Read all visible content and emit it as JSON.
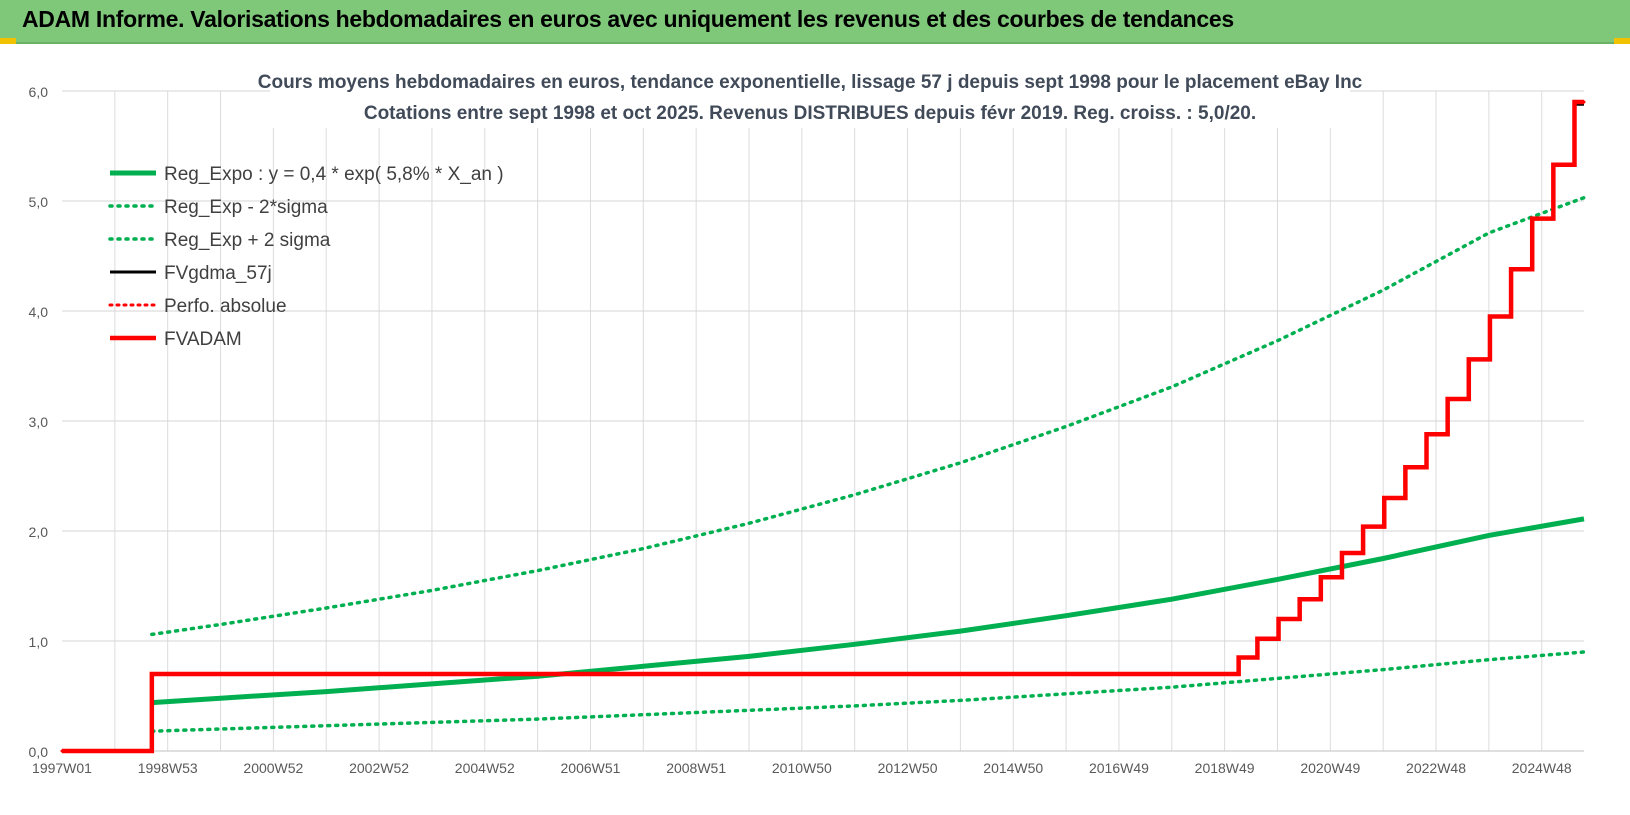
{
  "header": {
    "title": "ADAM Informe. Valorisations hebdomadaires en euros avec uniquement les revenus et des courbes de tendances"
  },
  "chart_data": {
    "type": "line",
    "title": "Cours moyens hebdomadaires en euros, tendance exponentielle, lissage 57 j depuis sept 1998 pour le placement eBay Inc",
    "subtitle": "Cotations entre sept 1998 et oct 2025. Revenus DISTRIBUES depuis févr 2019. Reg. croiss. : 5,0/20.",
    "xlabel": "",
    "ylabel": "",
    "x_range": [
      1997.0,
      2025.8
    ],
    "ylim": [
      0,
      6
    ],
    "y_ticks": [
      "0,0",
      "1,0",
      "2,0",
      "3,0",
      "4,0",
      "5,0",
      "6,0"
    ],
    "y_tick_values": [
      0,
      1,
      2,
      3,
      4,
      5,
      6
    ],
    "x_ticks": [
      "1997W01",
      "1998W53",
      "2000W52",
      "2002W52",
      "2004W52",
      "2006W51",
      "2008W51",
      "2010W50",
      "2012W50",
      "2014W50",
      "2016W49",
      "2018W49",
      "2020W49",
      "2022W48",
      "2024W48"
    ],
    "x_tick_values": [
      1997.0,
      1999.0,
      2001.0,
      2003.0,
      2005.0,
      2007.0,
      2009.0,
      2011.0,
      2013.0,
      2015.0,
      2017.0,
      2019.0,
      2021.0,
      2023.0,
      2025.0
    ],
    "grid": true,
    "legend_position": "top-left",
    "legend": [
      {
        "label": "Reg_Expo : y = 0,4 * exp( 5,8% *  X_an )",
        "color": "#00b050",
        "style": "solid-thick"
      },
      {
        "label": "Reg_Exp - 2*sigma",
        "color": "#00b050",
        "style": "dotted"
      },
      {
        "label": "Reg_Exp + 2 sigma",
        "color": "#00b050",
        "style": "dotted"
      },
      {
        "label": "FVgdma_57j",
        "color": "#000000",
        "style": "solid"
      },
      {
        "label": "Perfo. absolue",
        "color": "#ff0000",
        "style": "dotted"
      },
      {
        "label": "FVADAM",
        "color": "#ff0000",
        "style": "solid-thick"
      }
    ],
    "series": [
      {
        "name": "Reg_Expo : y = 0,4 * exp( 5,8% *  X_an )",
        "x": [
          1998.7,
          2000.0,
          2002.0,
          2004.0,
          2006.0,
          2008.0,
          2010.0,
          2012.0,
          2014.0,
          2016.0,
          2018.0,
          2020.0,
          2022.0,
          2024.0,
          2025.8
        ],
        "y": [
          0.44,
          0.48,
          0.54,
          0.61,
          0.68,
          0.77,
          0.86,
          0.97,
          1.09,
          1.23,
          1.38,
          1.56,
          1.75,
          1.96,
          2.11
        ]
      },
      {
        "name": "Reg_Exp - 2*sigma",
        "x": [
          1998.7,
          2000.0,
          2002.0,
          2004.0,
          2006.0,
          2008.0,
          2010.0,
          2012.0,
          2014.0,
          2016.0,
          2018.0,
          2020.0,
          2022.0,
          2024.0,
          2025.8
        ],
        "y": [
          0.18,
          0.2,
          0.23,
          0.26,
          0.29,
          0.33,
          0.37,
          0.41,
          0.46,
          0.52,
          0.58,
          0.66,
          0.74,
          0.83,
          0.9
        ]
      },
      {
        "name": "Reg_Exp + 2 sigma",
        "x": [
          1998.7,
          2000.0,
          2002.0,
          2004.0,
          2006.0,
          2008.0,
          2010.0,
          2012.0,
          2014.0,
          2016.0,
          2018.0,
          2020.0,
          2022.0,
          2024.0,
          2025.8
        ],
        "y": [
          1.06,
          1.15,
          1.3,
          1.46,
          1.64,
          1.84,
          2.07,
          2.33,
          2.62,
          2.95,
          3.31,
          3.73,
          4.19,
          4.71,
          5.03
        ]
      },
      {
        "name": "FVgdma_57j",
        "x": [
          1997.0,
          1998.7,
          1998.7,
          2019.1,
          2019.4,
          2019.8,
          2020.2,
          2020.6,
          2021.0,
          2021.4,
          2021.8,
          2022.2,
          2022.6,
          2023.0,
          2023.4,
          2023.8,
          2024.2,
          2024.6,
          2025.0,
          2025.4,
          2025.8
        ],
        "y": [
          0.0,
          0.0,
          0.7,
          0.7,
          0.85,
          1.02,
          1.2,
          1.38,
          1.58,
          1.8,
          2.04,
          2.3,
          2.58,
          2.88,
          3.2,
          3.56,
          3.95,
          4.38,
          4.84,
          5.33,
          5.88
        ]
      },
      {
        "name": "Perfo. absolue",
        "x": [
          1997.0,
          1998.7,
          1998.7,
          2019.1,
          2019.4,
          2019.8,
          2020.2,
          2020.6,
          2021.0,
          2021.4,
          2021.8,
          2022.2,
          2022.6,
          2023.0,
          2023.4,
          2023.8,
          2024.2,
          2024.6,
          2025.0,
          2025.4,
          2025.8
        ],
        "y": [
          0.0,
          0.0,
          0.7,
          0.7,
          0.85,
          1.02,
          1.2,
          1.38,
          1.58,
          1.8,
          2.04,
          2.3,
          2.58,
          2.88,
          3.2,
          3.56,
          3.95,
          4.38,
          4.84,
          5.33,
          5.9
        ]
      },
      {
        "name": "FVADAM",
        "x": [
          1997.0,
          1998.7,
          1998.7,
          2019.1,
          2019.4,
          2019.8,
          2020.2,
          2020.6,
          2021.0,
          2021.4,
          2021.8,
          2022.2,
          2022.6,
          2023.0,
          2023.4,
          2023.8,
          2024.2,
          2024.6,
          2025.0,
          2025.4,
          2025.8
        ],
        "y": [
          0.0,
          0.0,
          0.7,
          0.7,
          0.85,
          1.02,
          1.2,
          1.38,
          1.58,
          1.8,
          2.04,
          2.3,
          2.58,
          2.88,
          3.2,
          3.56,
          3.95,
          4.38,
          4.84,
          5.33,
          5.9
        ]
      }
    ]
  }
}
